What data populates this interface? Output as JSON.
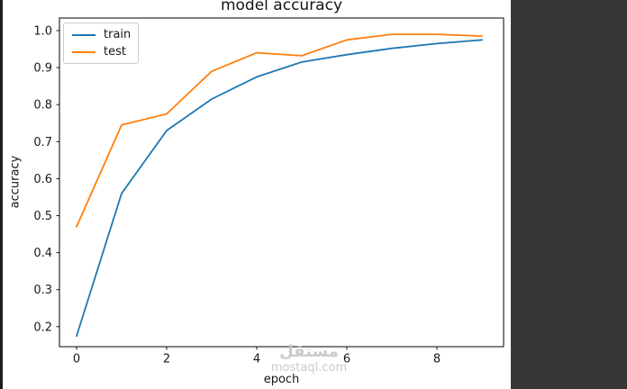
{
  "chart_data": {
    "type": "line",
    "title": "model accuracy",
    "xlabel": "epoch",
    "ylabel": "accuracy",
    "x": [
      0,
      1,
      2,
      3,
      4,
      5,
      6,
      7,
      8,
      9
    ],
    "series": [
      {
        "name": "train",
        "color": "#1f77b4",
        "values": [
          0.175,
          0.56,
          0.73,
          0.815,
          0.875,
          0.915,
          0.935,
          0.952,
          0.965,
          0.975
        ]
      },
      {
        "name": "test",
        "color": "#ff7f0e",
        "values": [
          0.47,
          0.745,
          0.775,
          0.89,
          0.94,
          0.932,
          0.975,
          0.99,
          0.99,
          0.985
        ]
      }
    ],
    "xlim": [
      -0.38,
      9.48
    ],
    "ylim": [
      0.146,
      1.034
    ],
    "x_tick_values": [
      0,
      2,
      4,
      6,
      8
    ],
    "x_tick_labels": [
      "0",
      "2",
      "4",
      "6",
      "8"
    ],
    "y_tick_values": [
      0.2,
      0.3,
      0.4,
      0.5,
      0.6,
      0.7,
      0.8,
      0.9,
      1.0
    ],
    "y_tick_labels": [
      "0.2",
      "0.3",
      "0.4",
      "0.5",
      "0.6",
      "0.7",
      "0.8",
      "0.9",
      "1.0"
    ],
    "legend_position": "upper left",
    "grid": false
  },
  "watermark": {
    "logo_text": "مستقل",
    "domain": "mostaql.com"
  },
  "colors": {
    "side_panel": "#373737",
    "left_edge": "#1c1c1c",
    "axis": "#000000",
    "tick_text": "#1a1a1a",
    "watermark_text": "#c6c6c6",
    "legend_border": "#cccccc"
  }
}
